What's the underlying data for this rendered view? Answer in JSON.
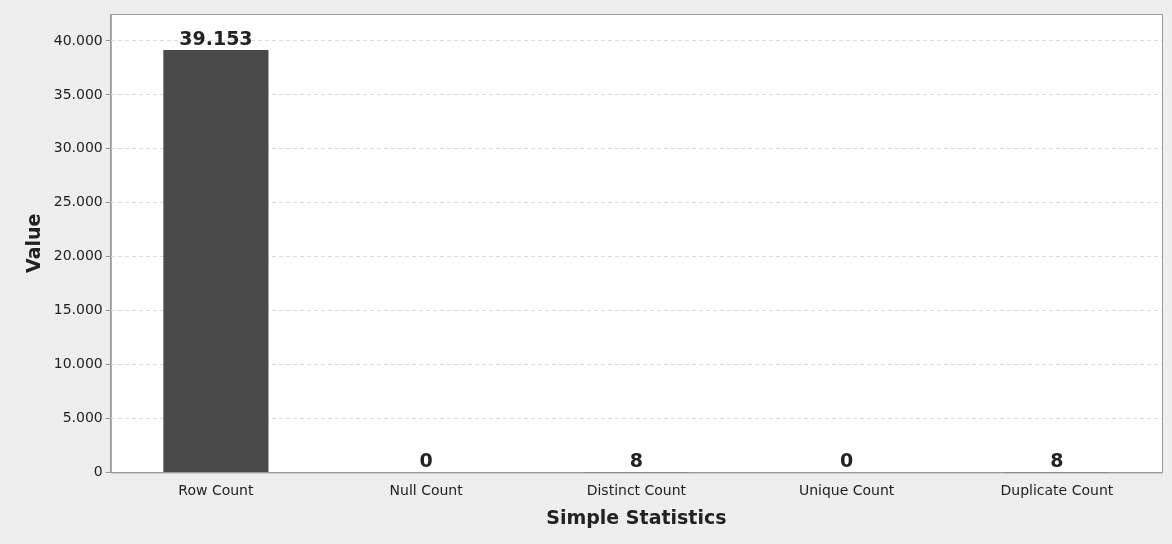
{
  "chart_data": {
    "type": "bar",
    "xlabel": "Simple Statistics",
    "ylabel": "Value",
    "categories": [
      "Row Count",
      "Null Count",
      "Distinct Count",
      "Unique Count",
      "Duplicate Count"
    ],
    "values": [
      39153,
      0,
      8,
      0,
      8
    ],
    "color": "#4a4a4a",
    "value_labels": [
      "39.153",
      "0",
      "8",
      "0",
      "8"
    ],
    "ylim": [
      0,
      42500
    ],
    "yticks": [
      {
        "value": 0,
        "label": "0"
      },
      {
        "value": 5000,
        "label": "5.000"
      },
      {
        "value": 10000,
        "label": "10.000"
      },
      {
        "value": 15000,
        "label": "15.000"
      },
      {
        "value": 20000,
        "label": "20.000"
      },
      {
        "value": 25000,
        "label": "25.000"
      },
      {
        "value": 30000,
        "label": "30.000"
      },
      {
        "value": 35000,
        "label": "35.000"
      },
      {
        "value": 40000,
        "label": "40.000"
      }
    ],
    "grid": "y",
    "legend": false
  }
}
